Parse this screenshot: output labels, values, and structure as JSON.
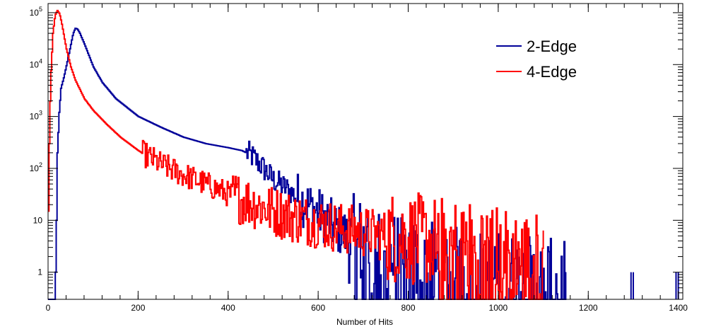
{
  "chart_data": {
    "type": "line",
    "title": "",
    "xlabel": "Number of Hits",
    "ylabel": "",
    "xlim": [
      0,
      1410
    ],
    "ylim_log": [
      0.3,
      150000
    ],
    "y_scale": "log",
    "x_ticks": [
      {
        "value": 0,
        "label": "0"
      },
      {
        "value": 200,
        "label": "200"
      },
      {
        "value": 400,
        "label": "400"
      },
      {
        "value": 600,
        "label": "600"
      },
      {
        "value": 800,
        "label": "800"
      },
      {
        "value": 1000,
        "label": "1000"
      },
      {
        "value": 1200,
        "label": "1200"
      },
      {
        "value": 1400,
        "label": "1400"
      }
    ],
    "y_ticks": [
      {
        "value": 1,
        "base": "1",
        "exp": ""
      },
      {
        "value": 10,
        "base": "10",
        "exp": ""
      },
      {
        "value": 100,
        "base": "10",
        "exp": "2"
      },
      {
        "value": 1000,
        "base": "10",
        "exp": "3"
      },
      {
        "value": 10000,
        "base": "10",
        "exp": "4"
      },
      {
        "value": 100000,
        "base": "10",
        "exp": "5"
      }
    ],
    "legend_position": "top-right",
    "series": [
      {
        "name": "2-Edge",
        "color": "#000099",
        "points": [
          [
            0,
            0.3
          ],
          [
            14,
            0.3
          ],
          [
            16,
            1
          ],
          [
            18,
            10
          ],
          [
            20,
            200
          ],
          [
            24,
            1200
          ],
          [
            28,
            3500
          ],
          [
            35,
            6000
          ],
          [
            45,
            15000
          ],
          [
            55,
            40000
          ],
          [
            60,
            50000
          ],
          [
            65,
            48000
          ],
          [
            70,
            40000
          ],
          [
            80,
            25000
          ],
          [
            90,
            15000
          ],
          [
            100,
            9000
          ],
          [
            120,
            4500
          ],
          [
            150,
            2200
          ],
          [
            200,
            1000
          ],
          [
            250,
            620
          ],
          [
            300,
            400
          ],
          [
            350,
            300
          ],
          [
            400,
            250
          ],
          [
            430,
            220
          ],
          [
            450,
            180
          ],
          [
            470,
            120
          ],
          [
            500,
            60
          ],
          [
            530,
            40
          ],
          [
            560,
            25
          ],
          [
            600,
            14
          ],
          [
            640,
            7
          ],
          [
            680,
            4
          ],
          [
            720,
            3
          ],
          [
            760,
            2
          ],
          [
            800,
            1.5
          ],
          [
            850,
            1.2
          ],
          [
            900,
            1
          ],
          [
            950,
            0.9
          ],
          [
            1000,
            0.8
          ],
          [
            1050,
            0.7
          ],
          [
            1100,
            0.6
          ],
          [
            1150,
            0.5
          ]
        ],
        "extra_points": [
          [
            1295,
            1
          ],
          [
            1300,
            1
          ],
          [
            1395,
            1
          ],
          [
            1400,
            1
          ]
        ]
      },
      {
        "name": "4-Edge",
        "color": "#ff0000",
        "points": [
          [
            0,
            15
          ],
          [
            2,
            300
          ],
          [
            5,
            5000
          ],
          [
            10,
            40000
          ],
          [
            15,
            90000
          ],
          [
            20,
            110000
          ],
          [
            25,
            95000
          ],
          [
            30,
            60000
          ],
          [
            40,
            20000
          ],
          [
            50,
            9000
          ],
          [
            60,
            5000
          ],
          [
            80,
            2200
          ],
          [
            100,
            1300
          ],
          [
            130,
            700
          ],
          [
            160,
            400
          ],
          [
            200,
            220
          ],
          [
            250,
            120
          ],
          [
            300,
            75
          ],
          [
            350,
            50
          ],
          [
            400,
            32
          ],
          [
            450,
            22
          ],
          [
            500,
            15
          ],
          [
            550,
            11
          ],
          [
            600,
            9
          ],
          [
            650,
            7
          ],
          [
            700,
            6
          ],
          [
            750,
            5
          ],
          [
            800,
            4.5
          ],
          [
            850,
            4
          ],
          [
            900,
            3.5
          ],
          [
            950,
            3
          ],
          [
            1000,
            2.5
          ],
          [
            1050,
            2
          ],
          [
            1100,
            1.8
          ]
        ]
      }
    ]
  }
}
